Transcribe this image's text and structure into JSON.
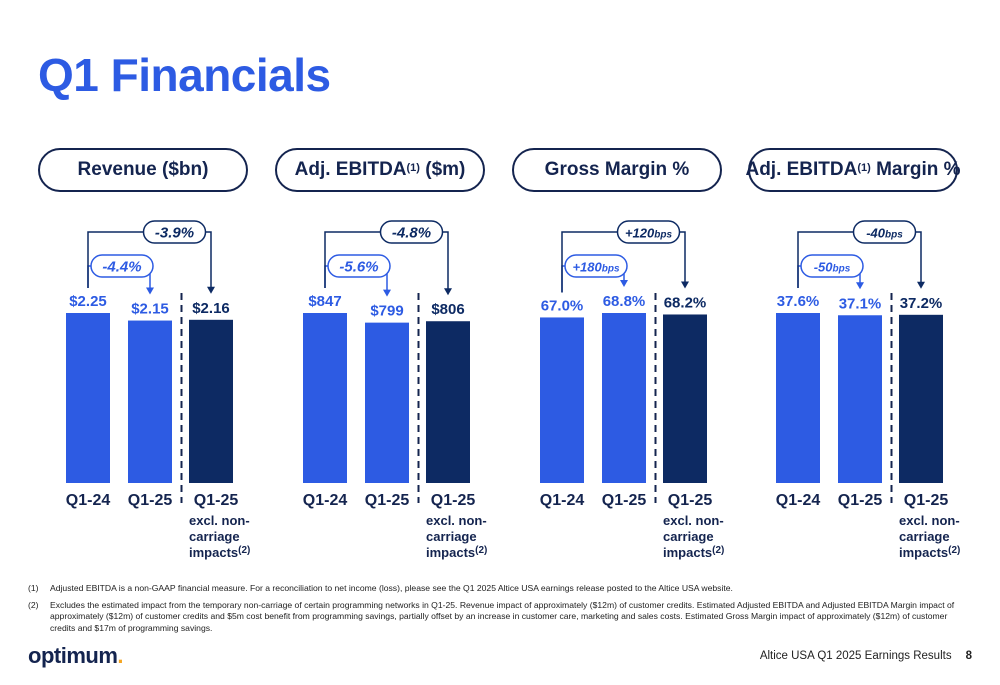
{
  "page": {
    "title": "Q1 Financials",
    "footer_text": "Altice USA Q1 2025 Earnings Results",
    "page_number": "8",
    "logo_text": "optimum",
    "logo_dot": "."
  },
  "footnotes": [
    {
      "num": "(1)",
      "text": "Adjusted EBITDA is a non-GAAP financial measure. For a reconciliation to net income (loss), please see the Q1 2025 Altice USA earnings release posted to the Altice USA website."
    },
    {
      "num": "(2)",
      "text": "Excludes the estimated impact from the temporary non-carriage of certain programming networks in Q1-25. Revenue impact of approximately ($12m) of customer credits. Estimated Adjusted EBITDA and Adjusted EBITDA Margin impact of approximately ($12m) of customer credits and $5m cost benefit from programming savings, partially offset by an increase in customer care, marketing and sales costs. Estimated Gross Margin impact of approximately ($12m) of customer credits and $17m of programming savings."
    }
  ],
  "colors": {
    "bar_light": "#2d5be3",
    "bar_dark": "#0d2a63",
    "text_dark": "#14244f",
    "title_blue": "#2d5be3"
  },
  "chart_data": [
    {
      "type": "bar",
      "title": "Revenue ($bn)",
      "title_sup": "",
      "categories": [
        "Q1-24",
        "Q1-25",
        "Q1-25"
      ],
      "category_notes": [
        "",
        "",
        "excl. non-carriage impacts"
      ],
      "category_note_sup": "(2)",
      "values": [
        2.25,
        2.15,
        2.16
      ],
      "labels": [
        "$2.25",
        "$2.15",
        "$2.16"
      ],
      "ylim": [
        0,
        2.25
      ],
      "change_short": {
        "main": "-4.4%",
        "unit": ""
      },
      "change_long": {
        "main": "-3.9%",
        "unit": ""
      }
    },
    {
      "type": "bar",
      "title": "Adj. EBITDA",
      "title_sup": "(1)",
      "title_suffix": " ($m)",
      "categories": [
        "Q1-24",
        "Q1-25",
        "Q1-25"
      ],
      "category_notes": [
        "",
        "",
        "excl. non-carriage impacts"
      ],
      "category_note_sup": "(2)",
      "values": [
        847,
        799,
        806
      ],
      "labels": [
        "$847",
        "$799",
        "$806"
      ],
      "ylim": [
        0,
        847
      ],
      "change_short": {
        "main": "-5.6%",
        "unit": ""
      },
      "change_long": {
        "main": "-4.8%",
        "unit": ""
      }
    },
    {
      "type": "bar",
      "title": "Gross Margin %",
      "title_sup": "",
      "categories": [
        "Q1-24",
        "Q1-25",
        "Q1-25"
      ],
      "category_notes": [
        "",
        "",
        "excl. non-carriage impacts"
      ],
      "category_note_sup": "(2)",
      "values": [
        67.0,
        68.8,
        68.2
      ],
      "labels": [
        "67.0%",
        "68.8%",
        "68.2%"
      ],
      "ylim": [
        0,
        68.8
      ],
      "change_short": {
        "main": "+180",
        "unit": "bps"
      },
      "change_long": {
        "main": "+120",
        "unit": "bps"
      }
    },
    {
      "type": "bar",
      "title": "Adj. EBITDA",
      "title_sup": "(1)",
      "title_suffix": " Margin %",
      "categories": [
        "Q1-24",
        "Q1-25",
        "Q1-25"
      ],
      "category_notes": [
        "",
        "",
        "excl. non-carriage impacts"
      ],
      "category_note_sup": "(2)",
      "values": [
        37.6,
        37.1,
        37.2
      ],
      "labels": [
        "37.6%",
        "37.1%",
        "37.2%"
      ],
      "ylim": [
        0,
        37.6
      ],
      "change_short": {
        "main": "-50",
        "unit": "bps"
      },
      "change_long": {
        "main": "-40",
        "unit": "bps"
      }
    }
  ]
}
